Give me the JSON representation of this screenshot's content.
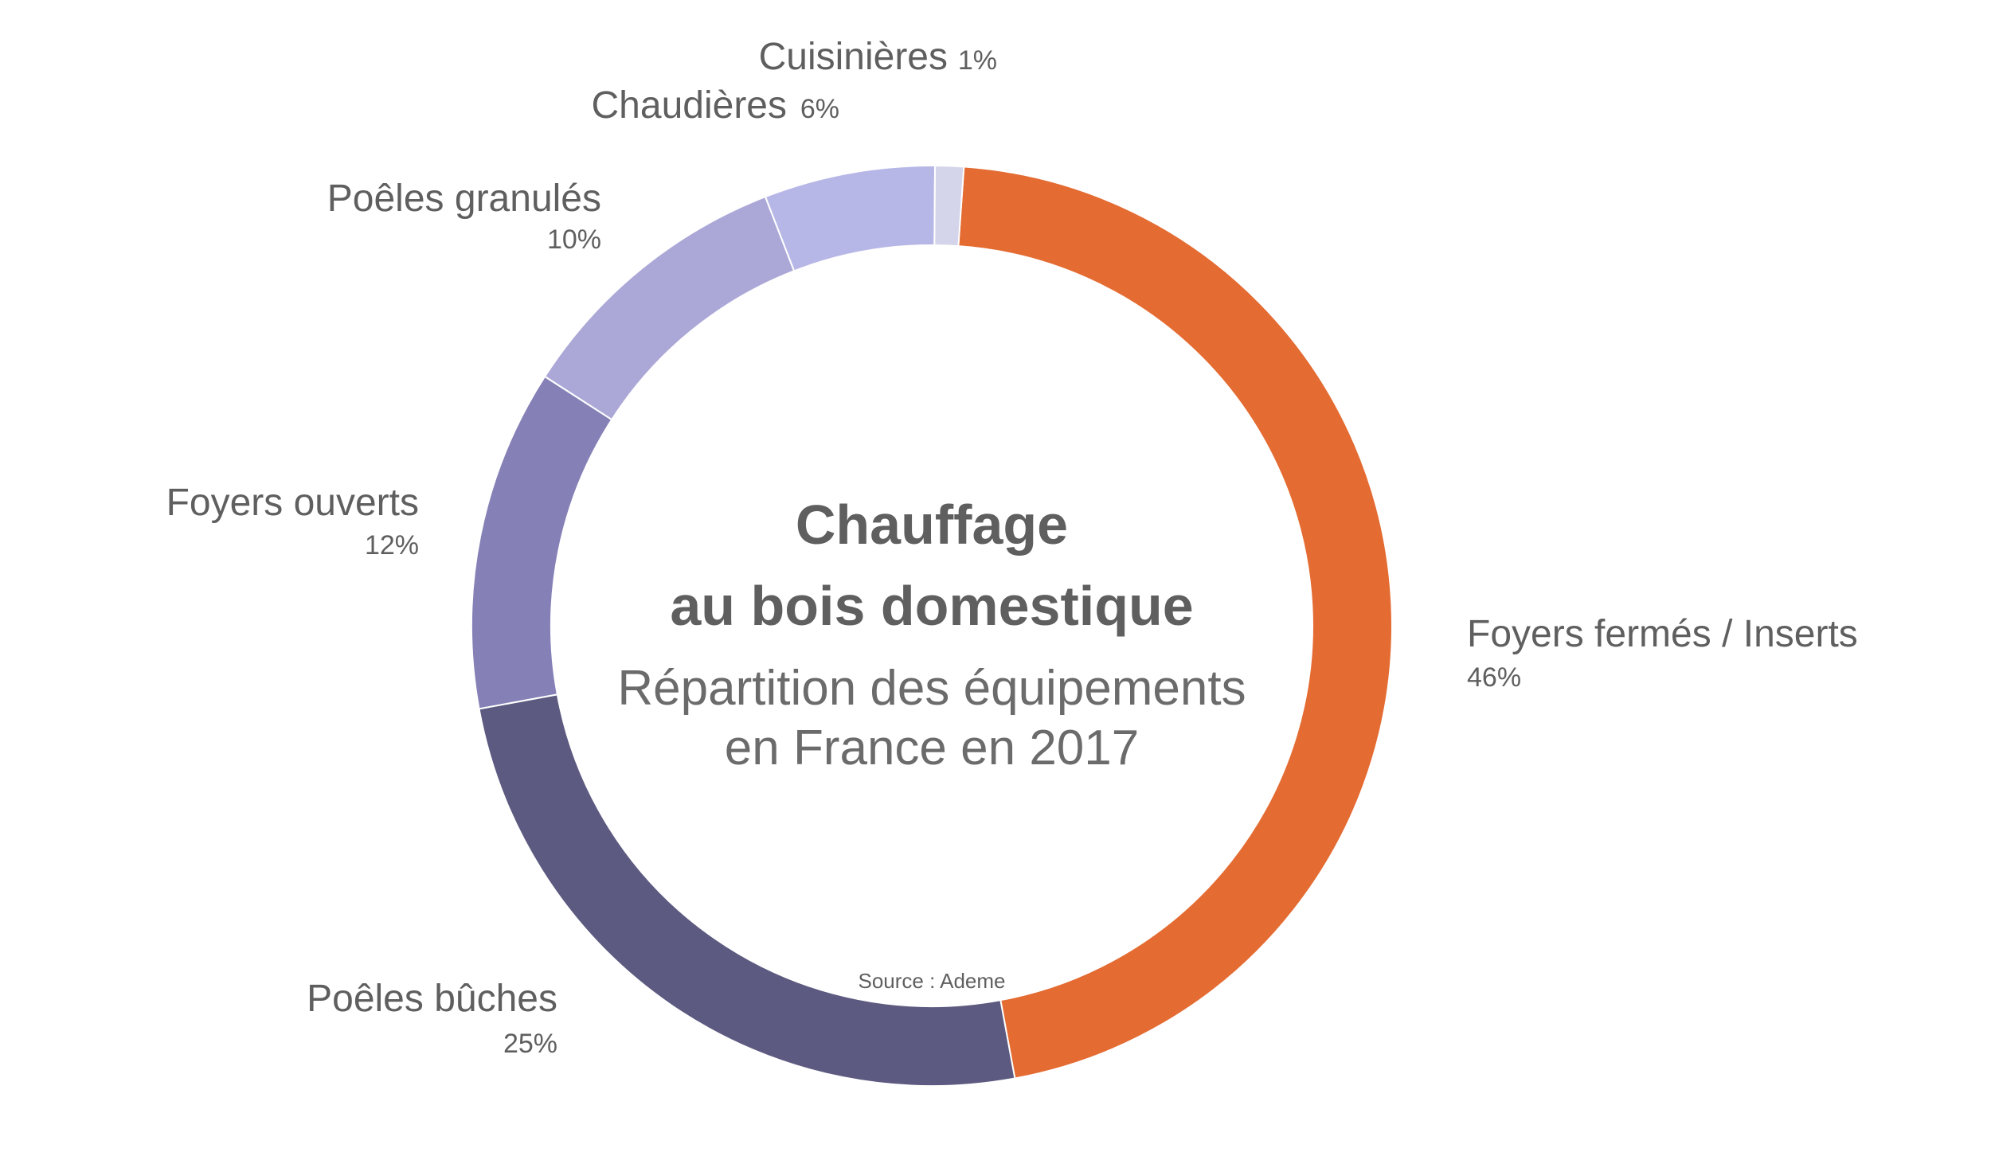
{
  "chart_data": {
    "type": "pie",
    "style": "donut",
    "title": [
      "Chauffage",
      "au bois domestique"
    ],
    "subtitle": [
      "Répartition des équipements",
      "en France en 2017"
    ],
    "source": "Source : Ademe",
    "unit": "%",
    "slices": [
      {
        "label": "Foyers fermés / Inserts",
        "pct_label": "46%",
        "value": 46,
        "color": "#e46b32"
      },
      {
        "label": "Poêles bûches",
        "pct_label": "25%",
        "value": 25,
        "color": "#5c5a80"
      },
      {
        "label": "Foyers ouverts",
        "pct_label": "12%",
        "value": 12,
        "color": "#8581b7"
      },
      {
        "label": "Poêles granulés",
        "pct_label": "10%",
        "value": 10,
        "color": "#aba8d7"
      },
      {
        "label": "Chaudières",
        "pct_label": "6%",
        "value": 6,
        "color": "#b7b7e7"
      },
      {
        "label": "Cuisinières",
        "pct_label": "1%",
        "value": 1,
        "color": "#d4d4ea"
      }
    ]
  }
}
